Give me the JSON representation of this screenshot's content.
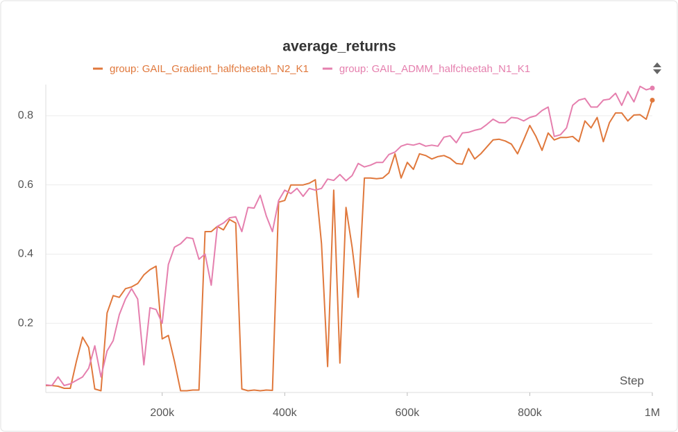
{
  "chart_data": {
    "type": "line",
    "title": "average_returns",
    "xlabel": "Step",
    "x": [
      10000,
      20000,
      30000,
      40000,
      50000,
      60000,
      70000,
      80000,
      90000,
      100000,
      110000,
      120000,
      130000,
      140000,
      150000,
      160000,
      170000,
      180000,
      190000,
      200000,
      210000,
      220000,
      230000,
      240000,
      250000,
      260000,
      270000,
      280000,
      290000,
      300000,
      310000,
      320000,
      330000,
      340000,
      350000,
      360000,
      370000,
      380000,
      390000,
      400000,
      410000,
      420000,
      430000,
      440000,
      450000,
      460000,
      470000,
      480000,
      490000,
      500000,
      510000,
      520000,
      530000,
      540000,
      550000,
      560000,
      570000,
      580000,
      590000,
      600000,
      610000,
      620000,
      630000,
      640000,
      650000,
      660000,
      670000,
      680000,
      690000,
      700000,
      710000,
      720000,
      730000,
      740000,
      750000,
      760000,
      770000,
      780000,
      790000,
      800000,
      810000,
      820000,
      830000,
      840000,
      850000,
      860000,
      870000,
      880000,
      890000,
      900000,
      910000,
      920000,
      930000,
      940000,
      950000,
      960000,
      970000,
      980000,
      990000,
      1000000
    ],
    "series": [
      {
        "name": "group: GAIL_Gradient_halfcheetah_N2_K1",
        "color": "#e0783c",
        "values": [
          0.02,
          0.02,
          0.018,
          0.012,
          0.012,
          0.09,
          0.16,
          0.13,
          0.01,
          0.005,
          0.23,
          0.28,
          0.275,
          0.3,
          0.305,
          0.315,
          0.34,
          0.355,
          0.365,
          0.155,
          0.165,
          0.09,
          0.005,
          0.005,
          0.007,
          0.007,
          0.465,
          0.465,
          0.48,
          0.47,
          0.5,
          0.49,
          0.01,
          0.005,
          0.007,
          0.005,
          0.007,
          0.006,
          0.55,
          0.555,
          0.6,
          0.6,
          0.6,
          0.605,
          0.615,
          0.43,
          0.075,
          0.585,
          0.085,
          0.535,
          0.42,
          0.275,
          0.62,
          0.62,
          0.618,
          0.62,
          0.635,
          0.69,
          0.62,
          0.665,
          0.645,
          0.69,
          0.685,
          0.675,
          0.682,
          0.685,
          0.677,
          0.662,
          0.66,
          0.705,
          0.675,
          0.69,
          0.71,
          0.73,
          0.732,
          0.727,
          0.718,
          0.69,
          0.73,
          0.772,
          0.74,
          0.7,
          0.75,
          0.73,
          0.737,
          0.737,
          0.74,
          0.725,
          0.785,
          0.765,
          0.795,
          0.725,
          0.78,
          0.808,
          0.808,
          0.785,
          0.802,
          0.803,
          0.79,
          0.845
        ]
      },
      {
        "name": "group: GAIL_ADMM_halfcheetah_N1_K1",
        "color": "#e57fae",
        "values": [
          0.022,
          0.02,
          0.045,
          0.02,
          0.025,
          0.035,
          0.045,
          0.07,
          0.135,
          0.045,
          0.12,
          0.15,
          0.225,
          0.27,
          0.3,
          0.27,
          0.08,
          0.245,
          0.24,
          0.2,
          0.37,
          0.42,
          0.43,
          0.448,
          0.445,
          0.385,
          0.4,
          0.31,
          0.48,
          0.49,
          0.505,
          0.508,
          0.465,
          0.535,
          0.533,
          0.57,
          0.51,
          0.465,
          0.555,
          0.585,
          0.575,
          0.59,
          0.567,
          0.59,
          0.585,
          0.59,
          0.617,
          0.613,
          0.63,
          0.612,
          0.627,
          0.662,
          0.652,
          0.657,
          0.665,
          0.665,
          0.688,
          0.695,
          0.712,
          0.718,
          0.715,
          0.72,
          0.712,
          0.715,
          0.712,
          0.738,
          0.742,
          0.722,
          0.75,
          0.752,
          0.758,
          0.762,
          0.775,
          0.79,
          0.78,
          0.78,
          0.795,
          0.793,
          0.785,
          0.795,
          0.8,
          0.815,
          0.825,
          0.74,
          0.745,
          0.765,
          0.83,
          0.845,
          0.85,
          0.825,
          0.825,
          0.845,
          0.848,
          0.865,
          0.83,
          0.87,
          0.84,
          0.885,
          0.875,
          0.88
        ]
      }
    ],
    "xlim": [
      10000,
      1000000
    ],
    "xticks": [
      {
        "value": 200000,
        "label": "200k"
      },
      {
        "value": 400000,
        "label": "400k"
      },
      {
        "value": 600000,
        "label": "600k"
      },
      {
        "value": 800000,
        "label": "800k"
      },
      {
        "value": 1000000,
        "label": "1M"
      }
    ],
    "ylim": [
      0,
      0.89
    ],
    "yticks": [
      0.2,
      0.4,
      0.6,
      0.8
    ],
    "grid": true
  }
}
